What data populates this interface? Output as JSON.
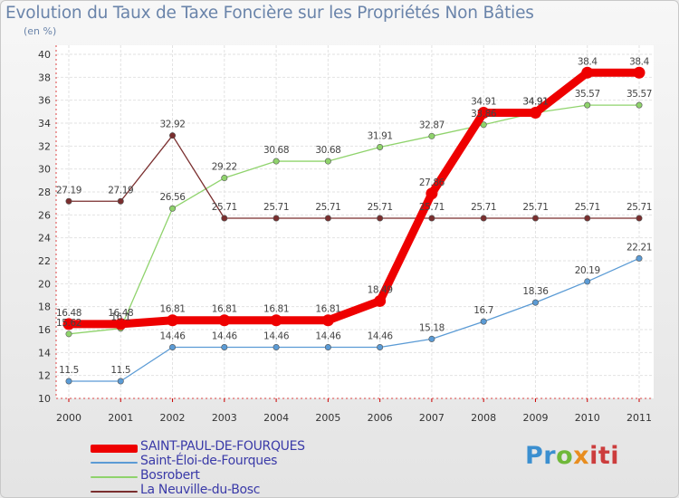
{
  "page": {
    "title": "Evolution du Taux de Taxe Foncière sur les Propriétés Non Bâties",
    "subtitle": "(en %)",
    "logo": {
      "p1": "Pr",
      "p2": "o",
      "p3": "x",
      "p4": "iti"
    }
  },
  "chart_data": {
    "type": "line",
    "title": "Evolution du Taux de Taxe Foncière sur les Propriétés Non Bâties",
    "ylabel": "(en %)",
    "xlabel": "",
    "ylim": [
      10,
      40
    ],
    "yticks": [
      10,
      12,
      14,
      16,
      18,
      20,
      22,
      24,
      26,
      28,
      30,
      32,
      34,
      36,
      38,
      40
    ],
    "grid": true,
    "legend_position": "bottom-left",
    "categories": [
      "2000",
      "2001",
      "2002",
      "2003",
      "2004",
      "2005",
      "2006",
      "2007",
      "2008",
      "2009",
      "2010",
      "2011"
    ],
    "series": [
      {
        "name": "SAINT-PAUL-DE-FOURQUES",
        "color": "#ee0000",
        "values": [
          16.48,
          16.48,
          16.81,
          16.81,
          16.81,
          16.81,
          18.49,
          27.86,
          34.91,
          34.91,
          38.4,
          38.4
        ],
        "labels": [
          "16.48",
          "16.48",
          "16.81",
          "16.81",
          "16.81",
          "16.81",
          "18.49",
          "27.86",
          "34.91",
          "34.91",
          "38.4",
          "38.4"
        ]
      },
      {
        "name": "Saint-Éloi-de-Fourques",
        "color": "#5b9bd5",
        "values": [
          11.5,
          11.5,
          14.46,
          14.46,
          14.46,
          14.46,
          14.46,
          15.18,
          16.7,
          18.36,
          20.19,
          22.21
        ],
        "labels": [
          "11.5",
          "11.5",
          "14.46",
          "14.46",
          "14.46",
          "14.46",
          "14.46",
          "15.18",
          "16.7",
          "18.36",
          "20.19",
          "22.21"
        ]
      },
      {
        "name": "Bosrobert",
        "color": "#8fd36c",
        "values": [
          15.62,
          16.1,
          26.56,
          29.22,
          30.68,
          30.68,
          31.91,
          32.87,
          33.86,
          34.91,
          35.57,
          35.57
        ],
        "labels": [
          "15.62",
          "16.1",
          "26.56",
          "29.22",
          "30.68",
          "30.68",
          "31.91",
          "32.87",
          "33.86",
          "34.91",
          "35.57",
          "35.57"
        ]
      },
      {
        "name": "La Neuville-du-Bosc",
        "color": "#7a2e2e",
        "values": [
          27.19,
          27.19,
          32.92,
          25.71,
          25.71,
          25.71,
          25.71,
          25.71,
          25.71,
          25.71,
          25.71,
          25.71
        ],
        "labels": [
          "27.19",
          "27.19",
          "32.92",
          "25.71",
          "25.71",
          "25.71",
          "25.71",
          "25.71",
          "25.71",
          "25.71",
          "25.71",
          "25.71"
        ]
      }
    ]
  }
}
